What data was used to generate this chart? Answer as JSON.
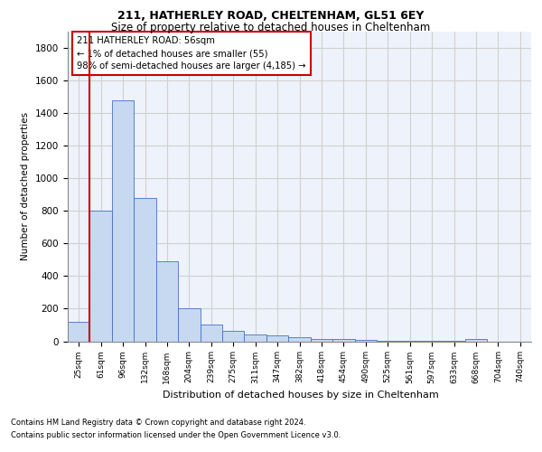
{
  "title1": "211, HATHERLEY ROAD, CHELTENHAM, GL51 6EY",
  "title2": "Size of property relative to detached houses in Cheltenham",
  "xlabel": "Distribution of detached houses by size in Cheltenham",
  "ylabel": "Number of detached properties",
  "categories": [
    "25sqm",
    "61sqm",
    "96sqm",
    "132sqm",
    "168sqm",
    "204sqm",
    "239sqm",
    "275sqm",
    "311sqm",
    "347sqm",
    "382sqm",
    "418sqm",
    "454sqm",
    "490sqm",
    "525sqm",
    "561sqm",
    "597sqm",
    "633sqm",
    "668sqm",
    "704sqm",
    "740sqm"
  ],
  "bar_values": [
    120,
    800,
    1480,
    880,
    490,
    205,
    100,
    65,
    40,
    35,
    25,
    15,
    15,
    10,
    5,
    5,
    5,
    5,
    15,
    0,
    0
  ],
  "bar_color": "#c6d9f1",
  "bar_edge_color": "#4472c4",
  "grid_color": "#d0d0d0",
  "vline_x_index": 1,
  "vline_color": "#cc0000",
  "annotation_text": "211 HATHERLEY ROAD: 56sqm\n← 1% of detached houses are smaller (55)\n98% of semi-detached houses are larger (4,185) →",
  "annotation_box_color": "#ffffff",
  "annotation_border_color": "#cc0000",
  "ylim": [
    0,
    1900
  ],
  "yticks": [
    0,
    200,
    400,
    600,
    800,
    1000,
    1200,
    1400,
    1600,
    1800
  ],
  "footnote1": "Contains HM Land Registry data © Crown copyright and database right 2024.",
  "footnote2": "Contains public sector information licensed under the Open Government Licence v3.0.",
  "bg_color": "#eef2fa"
}
